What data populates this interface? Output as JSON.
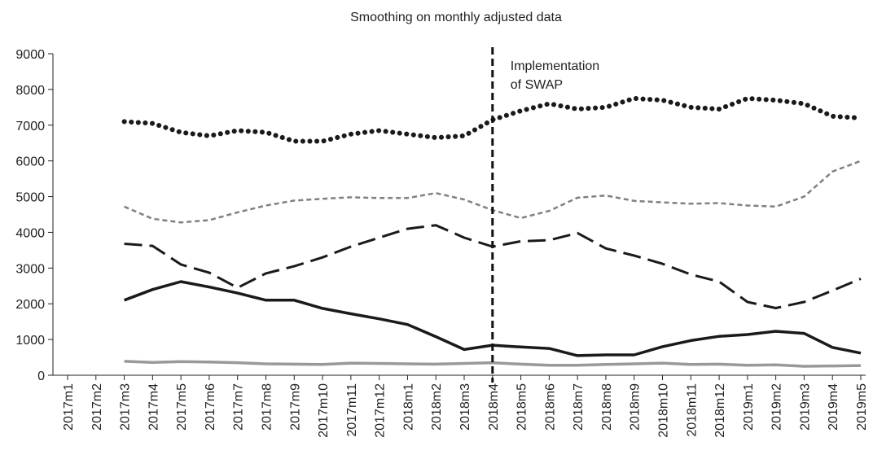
{
  "chart_data": {
    "type": "line",
    "title": "Smoothing on monthly adjusted data",
    "categories": [
      "2017m1",
      "2017m2",
      "2017m3",
      "2017m4",
      "2017m5",
      "2017m6",
      "2017m7",
      "2017m8",
      "2017m9",
      "2017m10",
      "2017m11",
      "2017m12",
      "2018m1",
      "2018m2",
      "2018m3",
      "2018m4",
      "2018m5",
      "2018m6",
      "2018m7",
      "2018m8",
      "2018m9",
      "2018m10",
      "2018m11",
      "2018m12",
      "2019m1",
      "2019m2",
      "2019m3",
      "2019m4",
      "2019m5"
    ],
    "series": [
      {
        "color": "#1a1a1a",
        "style": "dotted",
        "values": [
          null,
          null,
          7100,
          7050,
          6800,
          6700,
          6850,
          6800,
          6550,
          6550,
          6750,
          6850,
          6750,
          6650,
          6700,
          7150,
          7400,
          7600,
          7450,
          7500,
          7750,
          7700,
          7500,
          7450,
          7750,
          7700,
          7600,
          7250,
          7200
        ]
      },
      {
        "color": "#808080",
        "style": "dashed",
        "values": [
          null,
          null,
          4720,
          4380,
          4280,
          4340,
          4560,
          4750,
          4890,
          4940,
          4980,
          4960,
          4960,
          5100,
          4920,
          4620,
          4400,
          4600,
          4970,
          5030,
          4880,
          4840,
          4800,
          4820,
          4750,
          4720,
          5000,
          5700,
          6000
        ]
      },
      {
        "color": "#1a1a1a",
        "style": "longdash",
        "values": [
          null,
          null,
          3680,
          3620,
          3100,
          2870,
          2450,
          2850,
          3050,
          3300,
          3600,
          3850,
          4100,
          4200,
          3850,
          3600,
          3750,
          3780,
          3980,
          3550,
          3350,
          3120,
          2820,
          2620,
          2050,
          1880,
          2050,
          2370,
          2700
        ]
      },
      {
        "color": "#1a1a1a",
        "style": "solid",
        "values": [
          null,
          null,
          2100,
          2400,
          2620,
          2470,
          2300,
          2100,
          2100,
          1870,
          1720,
          1580,
          1420,
          1080,
          720,
          840,
          790,
          750,
          550,
          570,
          570,
          800,
          970,
          1090,
          1140,
          1230,
          1170,
          780,
          620
        ]
      },
      {
        "color": "#999999",
        "style": "solid",
        "values": [
          null,
          null,
          390,
          360,
          380,
          370,
          350,
          320,
          310,
          300,
          340,
          330,
          320,
          310,
          330,
          350,
          310,
          280,
          280,
          300,
          320,
          340,
          300,
          310,
          280,
          290,
          250,
          260,
          270
        ]
      }
    ],
    "ylim": [
      0,
      9000
    ],
    "yticks": [
      0,
      1000,
      2000,
      3000,
      4000,
      5000,
      6000,
      7000,
      8000,
      9000
    ],
    "grid": false,
    "annotation": {
      "x": "2018m4",
      "lines": [
        "Implementation",
        "of SWAP"
      ]
    }
  }
}
